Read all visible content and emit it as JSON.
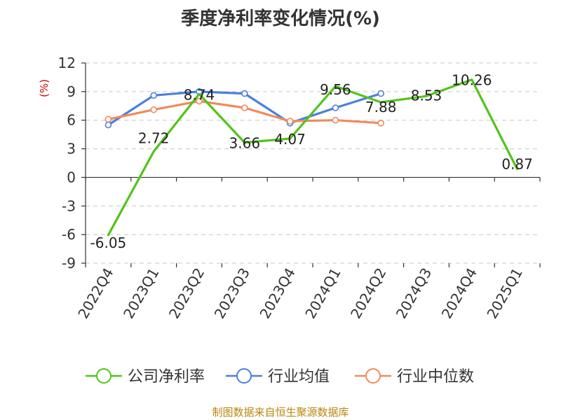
{
  "chart_data": {
    "type": "line",
    "title": "季度净利率变化情况(%)",
    "ylabel": "(%)",
    "xlabel": "",
    "categories": [
      "2022Q4",
      "2023Q1",
      "2023Q2",
      "2023Q3",
      "2023Q4",
      "2024Q1",
      "2024Q2",
      "2024Q3",
      "2024Q4",
      "2025Q1"
    ],
    "ylim": [
      -9,
      12
    ],
    "yticks": [
      12,
      9,
      6,
      3,
      0,
      -3,
      -6,
      -9
    ],
    "grid": true,
    "legend_position": "bottom",
    "series": [
      {
        "name": "公司净利率",
        "color": "#52c41a",
        "values": [
          -6.05,
          2.72,
          8.74,
          3.66,
          4.07,
          9.56,
          7.88,
          8.53,
          10.26,
          0.87
        ],
        "labels": [
          "-6.05",
          "2.72",
          "8.74",
          "3.66",
          "4.07",
          "9.56",
          "7.88",
          "8.53",
          "10.26",
          "0.87"
        ],
        "markers": false
      },
      {
        "name": "行业均值",
        "color": "#4a7fe0",
        "values": [
          5.5,
          8.6,
          9.0,
          8.8,
          5.7,
          7.3,
          8.8,
          null,
          null,
          null
        ],
        "markers": true
      },
      {
        "name": "行业中位数",
        "color": "#f08a5d",
        "values": [
          6.1,
          7.1,
          8.0,
          7.3,
          5.9,
          6.0,
          5.7,
          null,
          null,
          null
        ],
        "markers": true
      }
    ]
  },
  "footer": {
    "source": "制图数据来自恒生聚源数据库"
  }
}
